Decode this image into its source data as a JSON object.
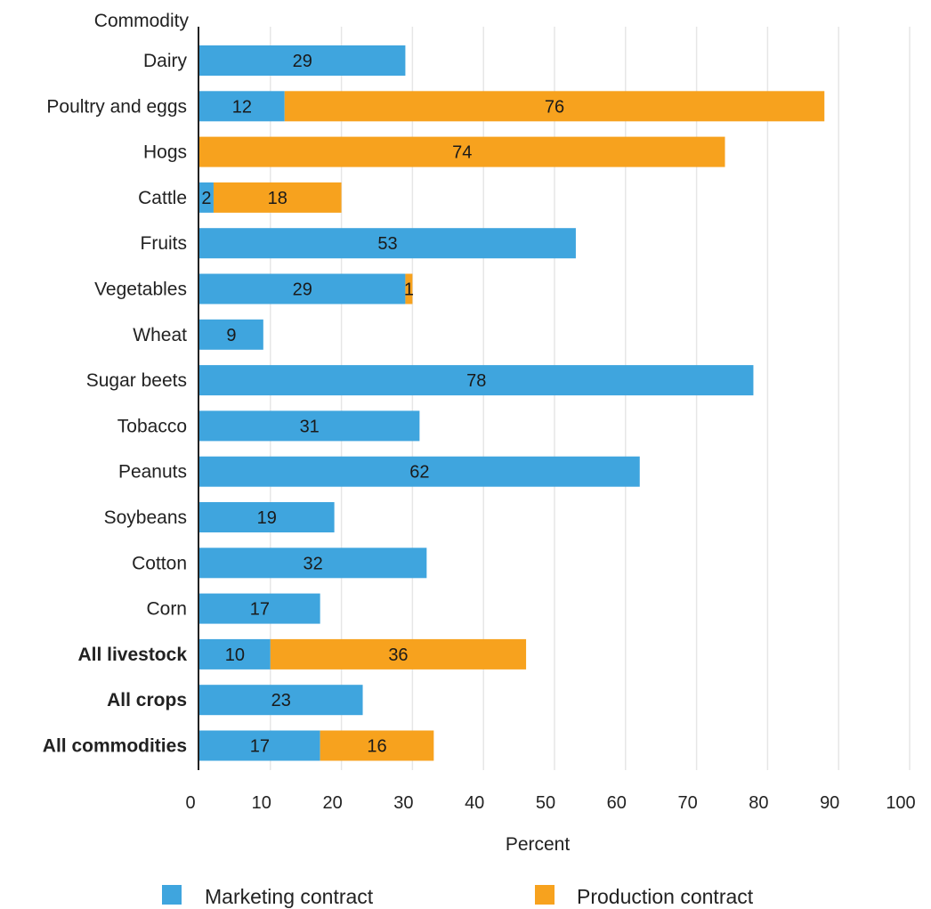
{
  "colors": {
    "marketing": "#3fa5de",
    "production": "#f7a21e",
    "grid": "#e6e6e6",
    "axis": "#222222"
  },
  "chart_data": {
    "type": "bar",
    "orientation": "horizontal",
    "stacked": true,
    "y_axis_title": "Commodity",
    "xlabel": "Percent",
    "xlim": [
      0,
      100
    ],
    "x_ticks": [
      0,
      10,
      20,
      30,
      40,
      50,
      60,
      70,
      80,
      90,
      100
    ],
    "grid": true,
    "legend_position": "bottom",
    "categories": [
      "Dairy",
      "Poultry and eggs",
      "Hogs",
      "Cattle",
      "Fruits",
      "Vegetables",
      "Wheat",
      "Sugar beets",
      "Tobacco",
      "Peanuts",
      "Soybeans",
      "Cotton",
      "Corn",
      "All livestock",
      "All crops",
      "All commodities"
    ],
    "bold_categories": [
      "All livestock",
      "All crops",
      "All commodities"
    ],
    "series": [
      {
        "name": "Marketing contract",
        "values": [
          29,
          12,
          0,
          2,
          53,
          29,
          9,
          78,
          31,
          62,
          19,
          32,
          17,
          10,
          23,
          17
        ],
        "labels": [
          "29",
          "12",
          "",
          "2",
          "53",
          "29",
          "9",
          "78",
          "31",
          "62",
          "19",
          "32",
          "17",
          "10",
          "23",
          "17"
        ]
      },
      {
        "name": "Production contract",
        "values": [
          0,
          76,
          74,
          18,
          0,
          1,
          0,
          0,
          0,
          0,
          0,
          0,
          0,
          36,
          0,
          16
        ],
        "labels": [
          "",
          "76",
          "74",
          "18",
          "",
          "1",
          "",
          "",
          "",
          "",
          "",
          "",
          "",
          "36",
          "",
          "16"
        ]
      }
    ]
  }
}
